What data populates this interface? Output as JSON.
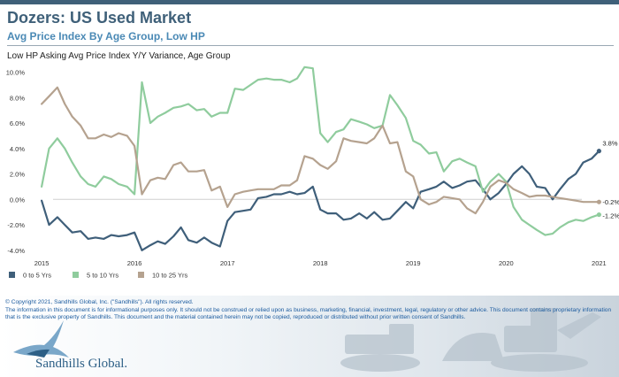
{
  "header": {
    "title": "Dozers:  US Used Market",
    "subtitle": "Avg Price Index By Age Group, Low HP"
  },
  "chart_data": {
    "type": "line",
    "title": "Low HP Asking Avg Price Index Y/Y Variance, Age Group",
    "x_ticks": [
      "2015",
      "2016",
      "2017",
      "2018",
      "2019",
      "2020",
      "2021"
    ],
    "y_ticks": [
      "-4.0%",
      "-2.0%",
      "0.0%",
      "2.0%",
      "4.0%",
      "6.0%",
      "8.0%",
      "10.0%"
    ],
    "ylim": [
      -4.5,
      10.8
    ],
    "xlim": [
      2014.99,
      2021.12
    ],
    "grid": false,
    "legend_position": "bottom-left",
    "series": [
      {
        "name": "0 to 5 Yrs",
        "color": "#3f5f7a",
        "end_label": "3.8%",
        "x": [
          2015.0,
          2015.08,
          2015.17,
          2015.25,
          2015.33,
          2015.42,
          2015.5,
          2015.58,
          2015.67,
          2015.75,
          2015.83,
          2015.92,
          2016.0,
          2016.08,
          2016.17,
          2016.25,
          2016.33,
          2016.42,
          2016.5,
          2016.58,
          2016.67,
          2016.75,
          2016.83,
          2016.92,
          2017.0,
          2017.08,
          2017.17,
          2017.25,
          2017.33,
          2017.42,
          2017.5,
          2017.58,
          2017.67,
          2017.75,
          2017.83,
          2017.92,
          2018.0,
          2018.08,
          2018.17,
          2018.25,
          2018.33,
          2018.42,
          2018.5,
          2018.58,
          2018.67,
          2018.75,
          2018.83,
          2018.92,
          2019.0,
          2019.08,
          2019.17,
          2019.25,
          2019.33,
          2019.42,
          2019.5,
          2019.58,
          2019.67,
          2019.75,
          2019.83,
          2019.92,
          2020.0,
          2020.08,
          2020.17,
          2020.25,
          2020.33,
          2020.42,
          2020.5,
          2020.58,
          2020.67,
          2020.75,
          2020.83,
          2020.92,
          2021.0
        ],
        "values": [
          -0.1,
          -2.0,
          -1.4,
          -2.0,
          -2.6,
          -2.5,
          -3.1,
          -3.0,
          -3.1,
          -2.8,
          -2.9,
          -2.8,
          -2.6,
          -4.0,
          -3.6,
          -3.3,
          -3.5,
          -2.9,
          -2.2,
          -3.2,
          -3.4,
          -3.0,
          -3.4,
          -3.7,
          -1.7,
          -1.0,
          -0.9,
          -0.8,
          0.1,
          0.2,
          0.4,
          0.4,
          0.6,
          0.4,
          0.5,
          1.0,
          -0.8,
          -1.1,
          -1.1,
          -1.6,
          -1.5,
          -1.1,
          -1.5,
          -1.0,
          -1.6,
          -1.5,
          -0.9,
          -0.2,
          -0.7,
          0.6,
          0.8,
          1.0,
          1.4,
          0.9,
          1.1,
          1.4,
          1.5,
          0.8,
          0.0,
          0.5,
          1.2,
          2.0,
          2.6,
          2.0,
          1.0,
          0.9,
          0.0,
          0.8,
          1.6,
          2.0,
          2.9,
          3.2,
          3.8
        ]
      },
      {
        "name": "5 to 10 Yrs",
        "color": "#8fcc9d",
        "end_label": "-1.2%",
        "x": [
          2015.0,
          2015.08,
          2015.17,
          2015.25,
          2015.33,
          2015.42,
          2015.5,
          2015.58,
          2015.67,
          2015.75,
          2015.83,
          2015.92,
          2016.0,
          2016.08,
          2016.17,
          2016.25,
          2016.33,
          2016.42,
          2016.5,
          2016.58,
          2016.67,
          2016.75,
          2016.83,
          2016.92,
          2017.0,
          2017.08,
          2017.17,
          2017.25,
          2017.33,
          2017.42,
          2017.5,
          2017.58,
          2017.67,
          2017.75,
          2017.83,
          2017.92,
          2018.0,
          2018.08,
          2018.17,
          2018.25,
          2018.33,
          2018.42,
          2018.5,
          2018.58,
          2018.67,
          2018.75,
          2018.83,
          2018.92,
          2019.0,
          2019.08,
          2019.17,
          2019.25,
          2019.33,
          2019.42,
          2019.5,
          2019.58,
          2019.67,
          2019.75,
          2019.83,
          2019.92,
          2020.0,
          2020.08,
          2020.17,
          2020.25,
          2020.33,
          2020.42,
          2020.5,
          2020.58,
          2020.67,
          2020.75,
          2020.83,
          2020.92,
          2021.0
        ],
        "values": [
          1.0,
          4.0,
          4.8,
          4.0,
          2.9,
          1.8,
          1.2,
          1.0,
          1.8,
          1.6,
          1.2,
          1.0,
          0.4,
          9.2,
          6.0,
          6.5,
          6.8,
          7.2,
          7.3,
          7.5,
          7.0,
          7.1,
          6.5,
          6.8,
          6.8,
          8.7,
          8.6,
          9.0,
          9.4,
          9.5,
          9.4,
          9.4,
          9.2,
          9.5,
          10.4,
          10.3,
          5.2,
          4.5,
          5.3,
          5.5,
          6.3,
          6.1,
          5.9,
          5.6,
          5.8,
          8.2,
          7.4,
          6.4,
          4.6,
          4.3,
          3.6,
          3.7,
          2.2,
          3.0,
          3.2,
          2.9,
          2.6,
          0.6,
          1.4,
          2.0,
          1.4,
          -0.6,
          -1.6,
          -2.0,
          -2.4,
          -2.8,
          -2.7,
          -2.2,
          -1.8,
          -1.6,
          -1.7,
          -1.4,
          -1.2
        ]
      },
      {
        "name": "10 to 25 Yrs",
        "color": "#b5a28f",
        "end_label": "-0.2%",
        "x": [
          2015.0,
          2015.08,
          2015.17,
          2015.25,
          2015.33,
          2015.42,
          2015.5,
          2015.58,
          2015.67,
          2015.75,
          2015.83,
          2015.92,
          2016.0,
          2016.08,
          2016.17,
          2016.25,
          2016.33,
          2016.42,
          2016.5,
          2016.58,
          2016.67,
          2016.75,
          2016.83,
          2016.92,
          2017.0,
          2017.08,
          2017.17,
          2017.25,
          2017.33,
          2017.42,
          2017.5,
          2017.58,
          2017.67,
          2017.75,
          2017.83,
          2017.92,
          2018.0,
          2018.08,
          2018.17,
          2018.25,
          2018.33,
          2018.42,
          2018.5,
          2018.58,
          2018.67,
          2018.75,
          2018.83,
          2018.92,
          2019.0,
          2019.08,
          2019.17,
          2019.25,
          2019.33,
          2019.42,
          2019.5,
          2019.58,
          2019.67,
          2019.75,
          2019.83,
          2019.92,
          2020.0,
          2020.08,
          2020.17,
          2020.25,
          2020.33,
          2020.42,
          2020.5,
          2020.58,
          2020.67,
          2020.75,
          2020.83,
          2020.92,
          2021.0
        ],
        "values": [
          7.5,
          8.1,
          8.8,
          7.5,
          6.5,
          5.8,
          4.8,
          4.8,
          5.1,
          4.9,
          5.2,
          5.0,
          4.2,
          0.4,
          1.5,
          1.7,
          1.6,
          2.7,
          2.9,
          2.2,
          2.2,
          2.3,
          0.7,
          1.0,
          -0.6,
          0.4,
          0.6,
          0.7,
          0.8,
          0.8,
          0.8,
          1.1,
          1.1,
          1.5,
          3.4,
          3.2,
          2.7,
          2.4,
          3.0,
          4.8,
          4.6,
          4.5,
          4.4,
          4.8,
          5.8,
          4.4,
          4.5,
          2.2,
          1.8,
          0.0,
          -0.4,
          -0.2,
          0.2,
          0.1,
          0.0,
          -0.7,
          -1.1,
          -0.2,
          1.0,
          1.5,
          1.3,
          0.8,
          0.5,
          0.2,
          0.3,
          0.3,
          0.2,
          0.1,
          0.0,
          -0.1,
          -0.2,
          -0.2,
          -0.2
        ]
      }
    ]
  },
  "footer": {
    "copyright": "© Copyright 2021, Sandhills Global, Inc. (\"Sandhills\"). All rights reserved.",
    "disclaimer": "The information in this document is for informational purposes only.  It should not be construed or relied upon as business, marketing, financial, investment, legal, regulatory or other advice. This document contains proprietary information that is the exclusive property of Sandhills. This document and the material contained herein may not be copied, reproduced or distributed without prior written consent of Sandhills.",
    "brand": "Sandhills Global."
  }
}
